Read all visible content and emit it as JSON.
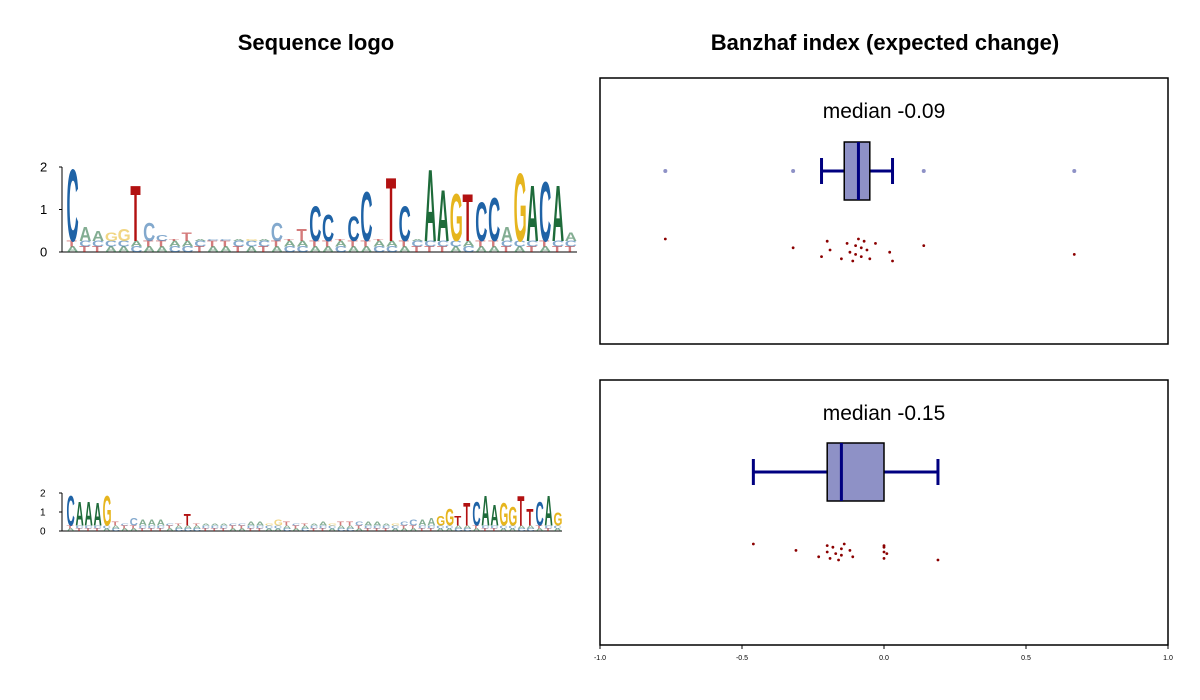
{
  "titles": {
    "logo": "Sequence logo",
    "banzhaf": "Banzhaf index (expected change)"
  },
  "colors": {
    "A": "#1e6b3a",
    "C": "#1f63a6",
    "G": "#e6b51e",
    "T": "#b21111",
    "box_fill": "#8e91c6",
    "box_edge": "#000080",
    "outlier": "#8e91c6",
    "jitter": "#8b0000"
  },
  "chart_data": [
    {
      "type": "sequence-logo",
      "ylim": [
        0,
        2
      ],
      "yticks": [
        "0",
        "1",
        "2"
      ],
      "sequence": "CAAGGTCCTTACCAGACTTCCTCCTTCAAAGTCCAGACAA",
      "heights": [
        2.0,
        0.6,
        0.5,
        0.45,
        0.55,
        1.6,
        0.7,
        0.4,
        0.15,
        0.45,
        0.1,
        0.15,
        0.2,
        0.2,
        0.2,
        0.3,
        0.7,
        0.25,
        0.55,
        1.1,
        0.9,
        0.3,
        0.85,
        1.45,
        0.2,
        1.8,
        1.1,
        0.3,
        2.0,
        1.5,
        1.4,
        1.4,
        1.2,
        1.3,
        0.6,
        1.9,
        1.6,
        1.7,
        1.6,
        0.45
      ]
    },
    {
      "type": "sequence-logo",
      "ylim": [
        0,
        2
      ],
      "yticks": [
        "0",
        "1",
        "2"
      ],
      "sequence": "CAAAGTCCAAACTTTAAACCAAGGTCTAAGTTCAAAGCCAAGGTTCAAGGTTCAG",
      "heights": [
        1.9,
        1.6,
        1.6,
        1.5,
        1.9,
        0.5,
        0.2,
        0.7,
        0.6,
        0.6,
        0.6,
        0.4,
        0.3,
        0.9,
        0.3,
        0.3,
        0.3,
        0.3,
        0.4,
        0.4,
        0.5,
        0.5,
        0.4,
        0.6,
        0.5,
        0.3,
        0.3,
        0.4,
        0.5,
        0.4,
        0.5,
        0.5,
        0.5,
        0.5,
        0.5,
        0.4,
        0.4,
        0.5,
        0.6,
        0.6,
        0.7,
        0.8,
        1.2,
        0.8,
        1.5,
        1.6,
        1.9,
        1.4,
        1.5,
        1.3,
        1.9,
        1.2,
        1.6,
        1.9,
        1.0
      ]
    },
    {
      "type": "boxplot",
      "title": "median -0.09",
      "xlim": [
        -1.0,
        1.0
      ],
      "box": {
        "q1": -0.14,
        "median": -0.09,
        "q3": -0.05,
        "whisker_low": -0.22,
        "whisker_high": 0.03
      },
      "outliers": [
        -0.77,
        -0.32,
        0.14,
        0.67
      ],
      "points": [
        -0.77,
        -0.32,
        -0.22,
        -0.2,
        -0.19,
        -0.15,
        -0.13,
        -0.12,
        -0.11,
        -0.1,
        -0.1,
        -0.09,
        -0.08,
        -0.08,
        -0.07,
        -0.06,
        -0.05,
        -0.03,
        0.02,
        0.03,
        0.14,
        0.67
      ]
    },
    {
      "type": "boxplot",
      "title": "median -0.15",
      "xlim": [
        -1.0,
        1.0
      ],
      "xticks": [
        "-1.0",
        "-0.5",
        "0.0",
        "0.5",
        "1.0"
      ],
      "xtick_values": [
        -1.0,
        -0.5,
        0.0,
        0.5,
        1.0
      ],
      "box": {
        "q1": -0.2,
        "median": -0.15,
        "q3": 0.0,
        "whisker_low": -0.46,
        "whisker_high": 0.19
      },
      "outliers": [],
      "points": [
        -0.46,
        -0.31,
        -0.23,
        -0.2,
        -0.2,
        -0.19,
        -0.18,
        -0.17,
        -0.16,
        -0.15,
        -0.15,
        -0.14,
        -0.12,
        -0.11,
        0.0,
        0.0,
        0.0,
        0.0,
        0.01,
        0.19
      ]
    }
  ]
}
